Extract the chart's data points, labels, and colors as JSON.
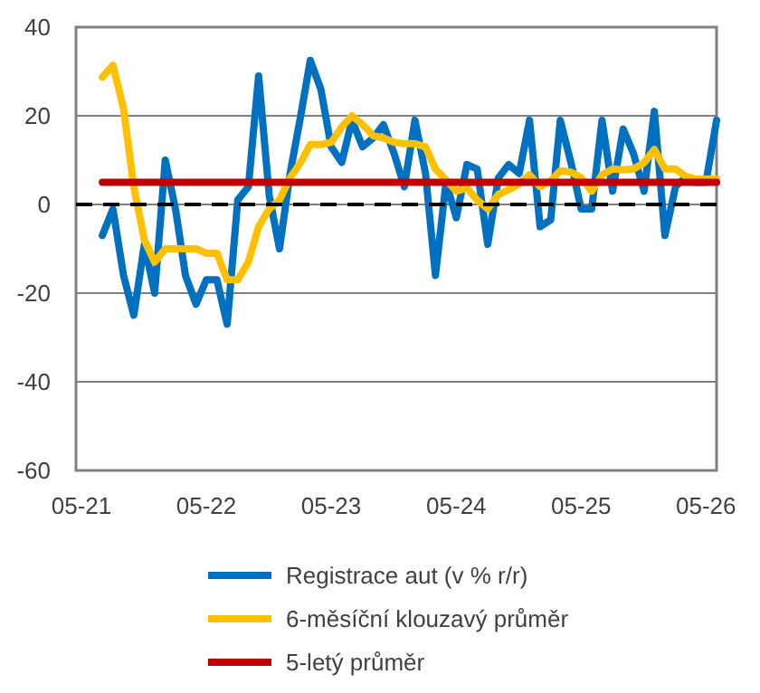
{
  "chart_data": {
    "type": "line",
    "x": [
      "2021-07",
      "2021-08",
      "2021-09",
      "2021-10",
      "2021-11",
      "2021-12",
      "2022-01",
      "2022-02",
      "2022-03",
      "2022-04",
      "2022-05",
      "2022-06",
      "2022-07",
      "2022-08",
      "2022-09",
      "2022-10",
      "2022-11",
      "2022-12",
      "2023-01",
      "2023-02",
      "2023-03",
      "2023-04",
      "2023-05",
      "2023-06",
      "2023-07",
      "2023-08",
      "2023-09",
      "2023-10",
      "2023-11",
      "2023-12",
      "2024-01",
      "2024-02",
      "2024-03",
      "2024-04",
      "2024-05",
      "2024-06",
      "2024-07",
      "2024-08",
      "2024-09",
      "2024-10",
      "2024-11",
      "2024-12",
      "2025-01",
      "2025-02",
      "2025-03",
      "2025-04",
      "2025-05",
      "2025-06",
      "2025-07",
      "2025-08",
      "2025-09",
      "2025-10",
      "2025-11",
      "2025-12",
      "2026-01",
      "2026-02",
      "2026-03",
      "2026-04",
      "2026-05",
      "2026-06"
    ],
    "series": [
      {
        "name": "Registrace aut (v % r/r)",
        "color": "#0070c0",
        "values": [
          -7,
          -1,
          -16,
          -25,
          -9,
          -20,
          10,
          -1.5,
          -16,
          -22.5,
          -17,
          -17,
          -27,
          1,
          4,
          29,
          2,
          -10,
          7,
          20,
          32.5,
          26,
          13,
          9.5,
          19,
          13,
          15,
          18,
          11.5,
          4,
          19,
          7,
          -16,
          5,
          -3,
          9,
          8,
          -9,
          6,
          9,
          7,
          19,
          -5,
          -3.5,
          19,
          9.5,
          -1,
          -1,
          19,
          3,
          17,
          11.5,
          3,
          21,
          -7,
          4,
          6,
          5,
          5,
          19
        ]
      },
      {
        "name": "6-měsíční klouzavý průměr",
        "color": "#ffc000",
        "values": [
          28.7,
          31.4,
          21.6,
          4,
          -8,
          -13,
          -10,
          -10,
          -10,
          -10,
          -11,
          -11,
          -17,
          -17,
          -13,
          -5,
          -1,
          1,
          6,
          9.5,
          13.5,
          13.5,
          14,
          17.5,
          20,
          18,
          15.5,
          15,
          14,
          13.7,
          13.7,
          13,
          8,
          5.5,
          3,
          3.7,
          1,
          -1,
          2.3,
          3.3,
          4.6,
          6.7,
          4,
          5.3,
          7.6,
          7.3,
          6,
          3,
          6.7,
          8,
          7.8,
          8,
          9.4,
          12.4,
          8,
          8,
          6.4,
          5.7,
          5.7,
          5.7
        ]
      },
      {
        "name": "5-letý průměr",
        "color": "#c00000",
        "x": [
          "2021-07",
          "2026-06"
        ],
        "values": [
          5,
          5
        ]
      }
    ],
    "xlim": [
      "2021-04-15",
      "2026-06-01"
    ],
    "xticks": [
      {
        "value": "2021-05",
        "label": "05-21"
      },
      {
        "value": "2022-05",
        "label": "05-22"
      },
      {
        "value": "2023-05",
        "label": "05-23"
      },
      {
        "value": "2024-05",
        "label": "05-24"
      },
      {
        "value": "2025-05",
        "label": "05-25"
      },
      {
        "value": "2026-05",
        "label": "05-26"
      }
    ],
    "ylim": [
      -60,
      40
    ],
    "yticks": [
      -60,
      -40,
      -20,
      0,
      20,
      40
    ],
    "ref_lines": [
      {
        "axis": "y",
        "value": 0,
        "color": "#000000",
        "line_style": "dashed"
      }
    ],
    "grid": "y",
    "legend": "bottom"
  }
}
